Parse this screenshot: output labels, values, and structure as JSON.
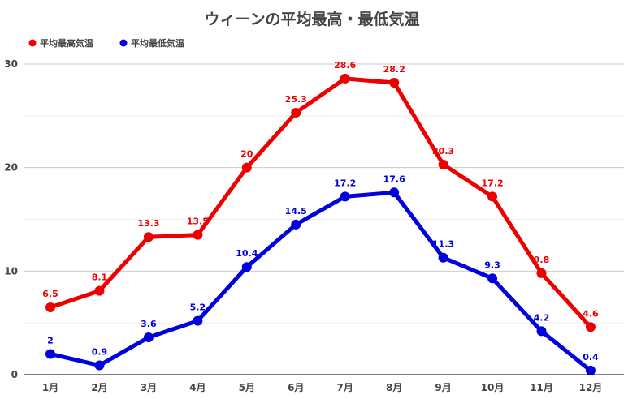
{
  "chart_data": {
    "type": "line",
    "title": "ウィーンの平均最高・最低気温",
    "xlabel": "",
    "ylabel": "",
    "categories": [
      "1月",
      "2月",
      "3月",
      "4月",
      "5月",
      "6月",
      "7月",
      "8月",
      "9月",
      "10月",
      "11月",
      "12月"
    ],
    "series": [
      {
        "name": "平均最高気温",
        "color": "#ee0000",
        "values": [
          6.5,
          8.1,
          13.3,
          13.5,
          20,
          25.3,
          28.6,
          28.2,
          20.3,
          17.2,
          9.8,
          4.6
        ]
      },
      {
        "name": "平均最低気温",
        "color": "#0000dd",
        "values": [
          2,
          0.9,
          3.6,
          5.2,
          10.4,
          14.5,
          17.2,
          17.6,
          11.3,
          9.3,
          4.2,
          0.4
        ]
      }
    ],
    "ylim": [
      0,
      30
    ],
    "yticks": [
      0,
      10,
      20,
      30
    ],
    "grid": true,
    "legend": "top-left",
    "data_labels": true
  }
}
